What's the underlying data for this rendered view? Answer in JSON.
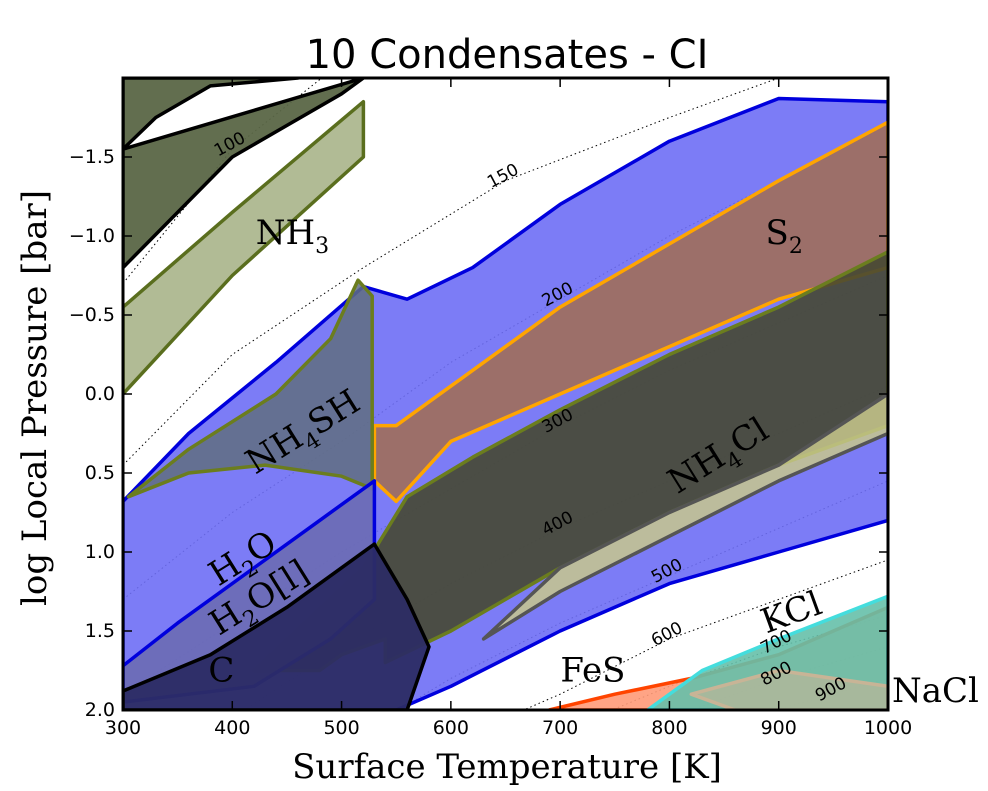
{
  "chart_data": {
    "type": "area",
    "title": "10 Condensates - CI",
    "xlabel": "Surface Temperature [K]",
    "ylabel": "log Local Pressure [bar]",
    "xlim": [
      300,
      1000
    ],
    "ylim": [
      2.0,
      -2.0
    ],
    "x_ticks": [
      300,
      400,
      500,
      600,
      700,
      800,
      900,
      1000
    ],
    "y_ticks": [
      -1.5,
      -1.0,
      -0.5,
      0.0,
      0.5,
      1.0,
      1.5,
      2.0
    ],
    "x_tick_labels": [
      "300",
      "400",
      "500",
      "600",
      "700",
      "800",
      "900",
      "1000"
    ],
    "y_tick_labels": [
      "−1.5",
      "−1.0",
      "−0.5",
      "0.0",
      "0.5",
      "1.0",
      "1.5",
      "2.0"
    ],
    "contours": [
      {
        "label": "100",
        "points": [
          [
            300,
            -0.7
          ],
          [
            400,
            -1.55
          ],
          [
            500,
            -2.1
          ]
        ]
      },
      {
        "label": "150",
        "points": [
          [
            300,
            0.45
          ],
          [
            400,
            -0.25
          ],
          [
            520,
            -0.8
          ],
          [
            650,
            -1.35
          ],
          [
            800,
            -1.75
          ],
          [
            900,
            -2.0
          ]
        ]
      },
      {
        "label": "200",
        "points": [
          [
            300,
            1.3
          ],
          [
            400,
            0.75
          ],
          [
            500,
            0.3
          ],
          [
            600,
            -0.2
          ],
          [
            700,
            -0.6
          ],
          [
            800,
            -1.0
          ],
          [
            900,
            -1.35
          ],
          [
            1000,
            -1.7
          ]
        ]
      },
      {
        "label": "300",
        "points": [
          [
            300,
            1.9
          ],
          [
            400,
            1.45
          ],
          [
            500,
            1.0
          ],
          [
            600,
            0.6
          ],
          [
            700,
            0.2
          ],
          [
            800,
            -0.15
          ],
          [
            900,
            -0.45
          ],
          [
            1000,
            -0.75
          ]
        ]
      },
      {
        "label": "400",
        "points": [
          [
            400,
            2.05
          ],
          [
            500,
            1.6
          ],
          [
            600,
            1.2
          ],
          [
            700,
            0.85
          ],
          [
            800,
            0.55
          ],
          [
            900,
            0.25
          ],
          [
            1000,
            -0.05
          ]
        ]
      },
      {
        "label": "500",
        "points": [
          [
            540,
            2.05
          ],
          [
            600,
            1.8
          ],
          [
            700,
            1.45
          ],
          [
            800,
            1.15
          ],
          [
            900,
            0.85
          ],
          [
            1000,
            0.55
          ]
        ]
      },
      {
        "label": "600",
        "points": [
          [
            650,
            2.05
          ],
          [
            700,
            1.9
          ],
          [
            800,
            1.55
          ],
          [
            900,
            1.3
          ],
          [
            1000,
            1.05
          ]
        ]
      },
      {
        "label": "700",
        "points": [
          [
            730,
            2.05
          ],
          [
            800,
            1.85
          ],
          [
            900,
            1.6
          ],
          [
            1000,
            1.4
          ]
        ]
      },
      {
        "label": "800",
        "points": [
          [
            800,
            2.05
          ],
          [
            900,
            1.8
          ],
          [
            1000,
            1.6
          ]
        ]
      },
      {
        "label": "900",
        "points": [
          [
            870,
            2.05
          ],
          [
            950,
            1.9
          ],
          [
            1000,
            1.8
          ]
        ]
      }
    ],
    "series": [
      {
        "name": "NH3",
        "label_main": "NH",
        "label_sub": "3",
        "fill": "#5a6646",
        "stroke": "#000000",
        "opacity": 0.95,
        "points": [
          [
            300,
            -1.55
          ],
          [
            330,
            -1.75
          ],
          [
            380,
            -1.95
          ],
          [
            460,
            -2.0
          ],
          [
            300,
            -2.0
          ],
          [
            300,
            -0.8
          ],
          [
            400,
            -1.5
          ],
          [
            500,
            -1.9
          ],
          [
            520,
            -2.0
          ]
        ]
      },
      {
        "name": "NH3-light",
        "fill": "#a8b48a",
        "stroke": "#5a6e1e",
        "opacity": 0.9,
        "points": [
          [
            300,
            -0.55
          ],
          [
            400,
            -1.15
          ],
          [
            520,
            -1.85
          ],
          [
            520,
            -1.5
          ],
          [
            400,
            -0.75
          ],
          [
            300,
            0.0
          ]
        ]
      },
      {
        "name": "H2O",
        "label_main": "H",
        "label_sub": "2",
        "label_tail": "O",
        "fill": "#6e6ef5",
        "stroke": "#0000dd",
        "opacity": 0.9,
        "points": [
          [
            300,
            0.68
          ],
          [
            360,
            0.25
          ],
          [
            440,
            -0.2
          ],
          [
            520,
            -0.68
          ],
          [
            560,
            -0.6
          ],
          [
            620,
            -0.8
          ],
          [
            700,
            -1.2
          ],
          [
            800,
            -1.6
          ],
          [
            900,
            -1.87
          ],
          [
            1000,
            -1.85
          ],
          [
            1000,
            0.8
          ],
          [
            900,
            1.0
          ],
          [
            800,
            1.2
          ],
          [
            700,
            1.5
          ],
          [
            600,
            1.85
          ],
          [
            550,
            2.0
          ],
          [
            300,
            2.0
          ]
        ]
      },
      {
        "name": "S2",
        "label_main": "S",
        "label_sub": "2",
        "fill": "#a06e5a",
        "stroke": "#ffa500",
        "opacity": 0.9,
        "points": [
          [
            530,
            0.2
          ],
          [
            550,
            0.2
          ],
          [
            600,
            -0.05
          ],
          [
            700,
            -0.55
          ],
          [
            800,
            -0.95
          ],
          [
            900,
            -1.35
          ],
          [
            1000,
            -1.72
          ],
          [
            1000,
            -0.8
          ],
          [
            900,
            -0.6
          ],
          [
            800,
            -0.3
          ],
          [
            700,
            0.0
          ],
          [
            600,
            0.3
          ],
          [
            550,
            0.68
          ],
          [
            530,
            0.55
          ]
        ]
      },
      {
        "name": "NH4SH",
        "label_main": "NH",
        "label_sub": "4",
        "label_tail": "SH",
        "fill": "#606e80",
        "stroke": "#6b7d1e",
        "opacity": 0.85,
        "points": [
          [
            305,
            0.65
          ],
          [
            360,
            0.35
          ],
          [
            440,
            0.0
          ],
          [
            490,
            -0.35
          ],
          [
            515,
            -0.72
          ],
          [
            528,
            -0.62
          ],
          [
            528,
            0.6
          ],
          [
            500,
            0.52
          ],
          [
            430,
            0.45
          ],
          [
            360,
            0.5
          ]
        ]
      },
      {
        "name": "NH4Cl",
        "label_main": "NH",
        "label_sub": "4",
        "label_tail": "Cl",
        "fill": "#464832",
        "stroke": "#6b7d1e",
        "opacity": 0.9,
        "points": [
          [
            420,
            1.75
          ],
          [
            520,
            1.1
          ],
          [
            560,
            0.65
          ],
          [
            620,
            0.4
          ],
          [
            700,
            0.1
          ],
          [
            800,
            -0.25
          ],
          [
            900,
            -0.55
          ],
          [
            1000,
            -0.9
          ],
          [
            1000,
            0.2
          ],
          [
            900,
            0.45
          ],
          [
            800,
            0.75
          ],
          [
            700,
            1.1
          ],
          [
            600,
            1.5
          ],
          [
            540,
            1.7
          ],
          [
            540,
            1.55
          ],
          [
            500,
            1.65
          ],
          [
            480,
            1.75
          ]
        ]
      },
      {
        "name": "NH4Cl-olive",
        "fill": "#c8c88c",
        "stroke": "#555555",
        "opacity": 0.85,
        "points": [
          [
            700,
            1.1
          ],
          [
            800,
            0.75
          ],
          [
            900,
            0.45
          ],
          [
            1000,
            0.0
          ],
          [
            1000,
            0.25
          ],
          [
            900,
            0.55
          ],
          [
            800,
            0.9
          ],
          [
            700,
            1.25
          ],
          [
            630,
            1.55
          ]
        ]
      },
      {
        "name": "H2O[l]",
        "label_main": "H",
        "label_sub": "2",
        "label_tail": "O[l]",
        "fill": "#6c6cb4",
        "stroke": "#0000dd",
        "opacity": 0.9,
        "points": [
          [
            300,
            1.72
          ],
          [
            350,
            1.45
          ],
          [
            420,
            1.1
          ],
          [
            480,
            0.8
          ],
          [
            530,
            0.55
          ],
          [
            530,
            1.3
          ],
          [
            490,
            1.55
          ],
          [
            420,
            1.85
          ],
          [
            300,
            1.95
          ]
        ]
      },
      {
        "name": "C",
        "label_main": "C",
        "fill": "#2c2c64",
        "stroke": "#000000",
        "opacity": 0.95,
        "points": [
          [
            300,
            1.88
          ],
          [
            380,
            1.65
          ],
          [
            450,
            1.35
          ],
          [
            530,
            0.95
          ],
          [
            560,
            1.3
          ],
          [
            580,
            1.6
          ],
          [
            560,
            2.0
          ],
          [
            300,
            2.0
          ]
        ]
      },
      {
        "name": "FeS",
        "label_main": "FeS",
        "fill": "#ff9a78",
        "stroke": "#ff4400",
        "opacity": 0.9,
        "points": [
          [
            690,
            2.0
          ],
          [
            750,
            1.9
          ],
          [
            820,
            1.8
          ],
          [
            900,
            1.65
          ],
          [
            1000,
            1.35
          ],
          [
            1000,
            2.0
          ]
        ]
      },
      {
        "name": "KCl",
        "label_main": "KCl",
        "fill": "#66c0aa",
        "stroke": "#44dddd",
        "opacity": 0.9,
        "points": [
          [
            780,
            2.0
          ],
          [
            830,
            1.75
          ],
          [
            900,
            1.55
          ],
          [
            1000,
            1.28
          ],
          [
            1000,
            2.0
          ]
        ]
      },
      {
        "name": "NaCl",
        "label_main": "NaCl",
        "fill": "#c8b496",
        "stroke": "#c8b496",
        "opacity": 0.6,
        "points": [
          [
            820,
            1.9
          ],
          [
            900,
            1.75
          ],
          [
            1000,
            1.85
          ],
          [
            1000,
            2.0
          ],
          [
            860,
            2.0
          ]
        ]
      }
    ],
    "labels": [
      {
        "series": "NH3",
        "at": [
          455,
          -0.95
        ]
      },
      {
        "series": "S2",
        "at": [
          905,
          -0.95
        ]
      },
      {
        "series": "NH4SH",
        "at": [
          470,
          0.3
        ]
      },
      {
        "series": "H2O",
        "at": [
          415,
          1.1
        ]
      },
      {
        "series": "H2O[l]",
        "at": [
          430,
          1.35
        ]
      },
      {
        "series": "C",
        "at": [
          390,
          1.82
        ]
      },
      {
        "series": "FeS",
        "at": [
          730,
          1.82
        ]
      },
      {
        "series": "KCl",
        "at": [
          915,
          1.45
        ]
      },
      {
        "series": "NH4Cl",
        "at": [
          850,
          0.45
        ]
      },
      {
        "series": "NaCl",
        "at": [
          1060,
          1.95
        ]
      }
    ]
  }
}
